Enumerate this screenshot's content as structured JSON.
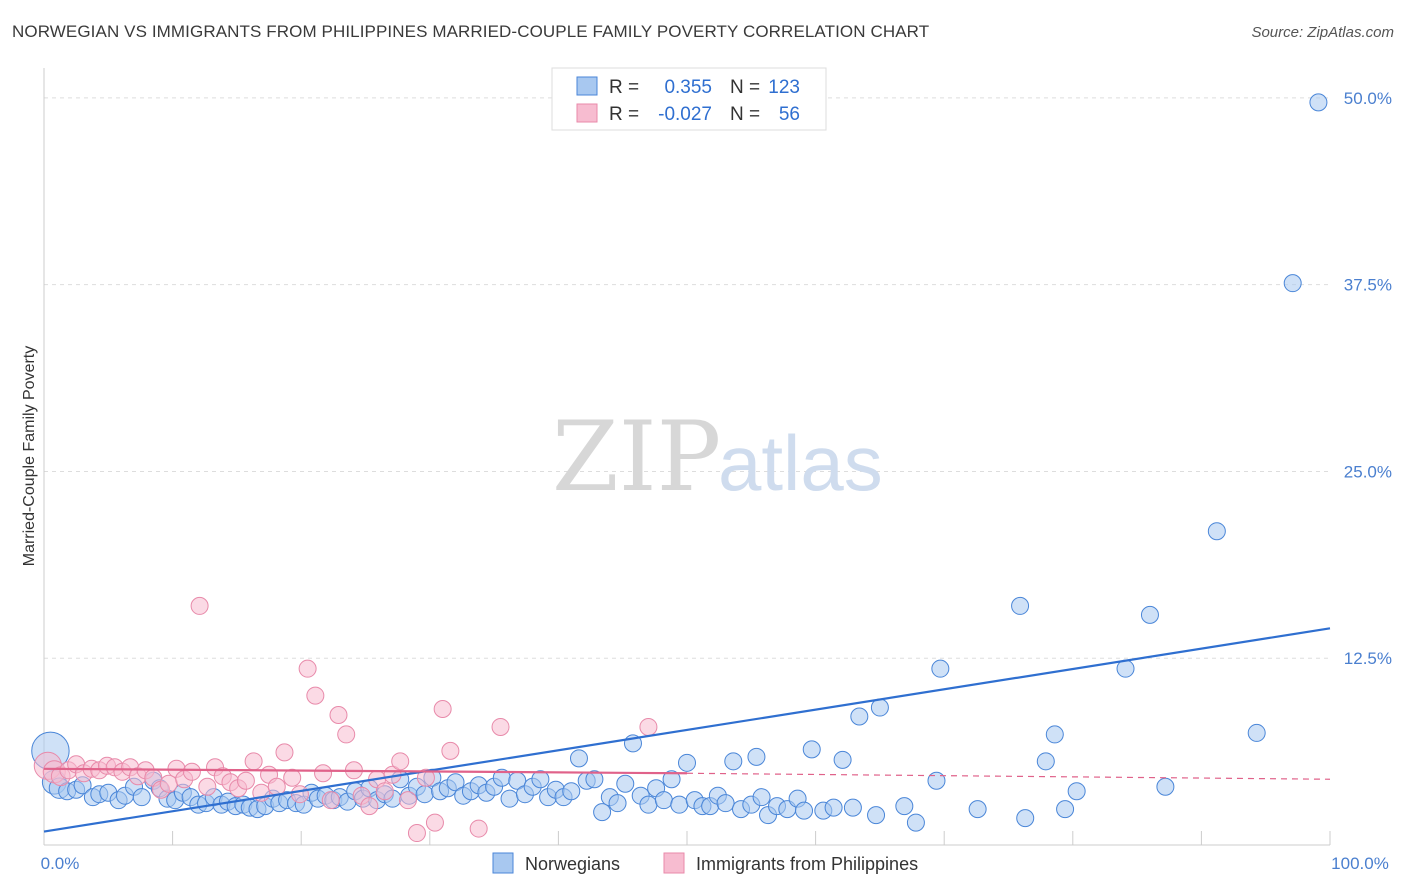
{
  "header": {
    "title": "NORWEGIAN VS IMMIGRANTS FROM PHILIPPINES MARRIED-COUPLE FAMILY POVERTY CORRELATION CHART",
    "source": "Source: ZipAtlas.com"
  },
  "watermark": {
    "zip": "ZIP",
    "atlas": "atlas"
  },
  "legend": {
    "r_label": "R =",
    "n_label": "N =",
    "rows": [
      {
        "name": "Norwegians",
        "r": "0.355",
        "n": "123",
        "color": "#a8c8f0",
        "stroke": "#4a86d8"
      },
      {
        "name": "Immigrants from Philippines",
        "r": "-0.027",
        "n": "56",
        "color": "#f7bcd0",
        "stroke": "#e88aaa"
      }
    ]
  },
  "chart_data": {
    "type": "scatter",
    "title": "NORWEGIAN VS IMMIGRANTS FROM PHILIPPINES MARRIED-COUPLE FAMILY POVERTY CORRELATION CHART",
    "xlabel": "",
    "ylabel": "Married-Couple Family Poverty",
    "xlim": [
      0,
      100
    ],
    "ylim": [
      0,
      52
    ],
    "x_tick_labels": [
      "0.0%",
      "100.0%"
    ],
    "y_ticks": [
      12.5,
      25.0,
      37.5,
      50.0
    ],
    "y_tick_labels": [
      "12.5%",
      "25.0%",
      "37.5%",
      "50.0%"
    ],
    "grid": true,
    "legend_position": "top-center",
    "series": [
      {
        "name": "Norwegians",
        "color": "#a8c8f0",
        "stroke": "#4a86d8",
        "line_color": "#2f6fd0",
        "trend": {
          "x0": 0,
          "y0": 0.9,
          "x1": 100,
          "y1": 14.5,
          "dashed_from": null
        },
        "points": [
          [
            0.5,
            6.3,
            2.2
          ],
          [
            0.8,
            4.2,
            1.4
          ],
          [
            1.2,
            3.8,
            1.2
          ],
          [
            1.8,
            3.6,
            1
          ],
          [
            2.5,
            3.7,
            1
          ],
          [
            3,
            4.0,
            1
          ],
          [
            3.8,
            3.2,
            1
          ],
          [
            4.3,
            3.4,
            1
          ],
          [
            5,
            3.5,
            1
          ],
          [
            5.8,
            3.0,
            1
          ],
          [
            6.3,
            3.3,
            1
          ],
          [
            7,
            3.9,
            1
          ],
          [
            7.6,
            3.2,
            1
          ],
          [
            8.5,
            4.3,
            1
          ],
          [
            9,
            3.8,
            1
          ],
          [
            9.6,
            3.1,
            1
          ],
          [
            10.2,
            3.0,
            1
          ],
          [
            10.8,
            3.5,
            1
          ],
          [
            11.4,
            3.2,
            1
          ],
          [
            12,
            2.7,
            1
          ],
          [
            12.6,
            2.8,
            1
          ],
          [
            13.2,
            3.2,
            1
          ],
          [
            13.8,
            2.7,
            1
          ],
          [
            14.3,
            2.9,
            1
          ],
          [
            14.9,
            2.6,
            1
          ],
          [
            15.5,
            2.7,
            1
          ],
          [
            16,
            2.5,
            1
          ],
          [
            16.6,
            2.4,
            1
          ],
          [
            17.2,
            2.6,
            1
          ],
          [
            17.8,
            3.1,
            1
          ],
          [
            18.3,
            2.8,
            1
          ],
          [
            18.9,
            3.0,
            1
          ],
          [
            19.6,
            2.8,
            1
          ],
          [
            20.2,
            2.7,
            1
          ],
          [
            20.8,
            3.5,
            1
          ],
          [
            21.3,
            3.1,
            1
          ],
          [
            21.9,
            3.3,
            1
          ],
          [
            22.5,
            3.0,
            1
          ],
          [
            23,
            3.2,
            1
          ],
          [
            23.6,
            2.9,
            1
          ],
          [
            24.2,
            3.6,
            1
          ],
          [
            24.8,
            3.1,
            1
          ],
          [
            25.3,
            3.8,
            1
          ],
          [
            25.9,
            3.0,
            1
          ],
          [
            26.5,
            3.4,
            1
          ],
          [
            27.1,
            3.1,
            1
          ],
          [
            27.7,
            4.4,
            1
          ],
          [
            28.4,
            3.3,
            1
          ],
          [
            29,
            3.9,
            1
          ],
          [
            29.6,
            3.4,
            1
          ],
          [
            30.2,
            4.5,
            1
          ],
          [
            30.8,
            3.6,
            1
          ],
          [
            31.4,
            3.8,
            1
          ],
          [
            32,
            4.2,
            1
          ],
          [
            32.6,
            3.3,
            1
          ],
          [
            33.2,
            3.6,
            1
          ],
          [
            33.8,
            4.0,
            1
          ],
          [
            34.4,
            3.5,
            1
          ],
          [
            35,
            3.9,
            1
          ],
          [
            35.6,
            4.5,
            1
          ],
          [
            36.2,
            3.1,
            1
          ],
          [
            36.8,
            4.3,
            1
          ],
          [
            37.4,
            3.4,
            1
          ],
          [
            38,
            3.9,
            1
          ],
          [
            38.6,
            4.4,
            1
          ],
          [
            39.2,
            3.2,
            1
          ],
          [
            39.8,
            3.7,
            1
          ],
          [
            40.4,
            3.2,
            1
          ],
          [
            41,
            3.6,
            1
          ],
          [
            41.6,
            5.8,
            1
          ],
          [
            42.2,
            4.3,
            1
          ],
          [
            42.8,
            4.4,
            1
          ],
          [
            43.4,
            2.2,
            1
          ],
          [
            44,
            3.2,
            1
          ],
          [
            44.6,
            2.8,
            1
          ],
          [
            45.2,
            4.1,
            1
          ],
          [
            45.8,
            6.8,
            1
          ],
          [
            46.4,
            3.3,
            1
          ],
          [
            47,
            2.7,
            1
          ],
          [
            47.6,
            3.8,
            1
          ],
          [
            48.2,
            3.0,
            1
          ],
          [
            48.8,
            4.4,
            1
          ],
          [
            49.4,
            2.7,
            1
          ],
          [
            50,
            5.5,
            1
          ],
          [
            50.6,
            3.0,
            1
          ],
          [
            51.2,
            2.6,
            1
          ],
          [
            51.8,
            2.6,
            1
          ],
          [
            52.4,
            3.3,
            1
          ],
          [
            53,
            2.8,
            1
          ],
          [
            53.6,
            5.6,
            1
          ],
          [
            54.2,
            2.4,
            1
          ],
          [
            55,
            2.7,
            1
          ],
          [
            55.8,
            3.2,
            1
          ],
          [
            56.3,
            2.0,
            1
          ],
          [
            57,
            2.6,
            1
          ],
          [
            57.8,
            2.4,
            1
          ],
          [
            58.6,
            3.1,
            1
          ],
          [
            59.1,
            2.3,
            1
          ],
          [
            59.7,
            6.4,
            1
          ],
          [
            60.6,
            2.3,
            1
          ],
          [
            61.4,
            2.5,
            1
          ],
          [
            62.1,
            5.7,
            1
          ],
          [
            62.9,
            2.5,
            1
          ],
          [
            63.4,
            8.6,
            1
          ],
          [
            64.7,
            2.0,
            1
          ],
          [
            65,
            9.2,
            1
          ],
          [
            66.9,
            2.6,
            1
          ],
          [
            67.8,
            1.5,
            1
          ],
          [
            69.4,
            4.3,
            1
          ],
          [
            69.7,
            11.8,
            1
          ],
          [
            72.6,
            2.4,
            1
          ],
          [
            75.9,
            16.0,
            1
          ],
          [
            76.3,
            1.8,
            1
          ],
          [
            77.9,
            5.6,
            1
          ],
          [
            78.6,
            7.4,
            1
          ],
          [
            79.4,
            2.4,
            1
          ],
          [
            80.3,
            3.6,
            1
          ],
          [
            84.1,
            11.8,
            1
          ],
          [
            91.2,
            21.0,
            1
          ],
          [
            87.2,
            3.9,
            1
          ],
          [
            86,
            15.4,
            1
          ],
          [
            94.3,
            7.5,
            1
          ],
          [
            97.1,
            37.6,
            1
          ],
          [
            99.1,
            49.7,
            1
          ],
          [
            55.4,
            5.9,
            1
          ]
        ]
      },
      {
        "name": "Immigrants from Philippines",
        "color": "#f7bcd0",
        "stroke": "#e88aaa",
        "line_color": "#e0628a",
        "trend": {
          "x0": 0,
          "y0": 5.1,
          "x1": 50,
          "y1": 4.8,
          "dashed_from": 50,
          "x2": 100,
          "y2": 4.4
        },
        "points": [
          [
            0.3,
            5.3,
            1.6
          ],
          [
            0.8,
            4.9,
            1.3
          ],
          [
            1.3,
            4.6,
            1.1
          ],
          [
            1.9,
            5.0,
            1
          ],
          [
            2.5,
            5.4,
            1
          ],
          [
            3.1,
            4.8,
            1
          ],
          [
            3.7,
            5.1,
            1
          ],
          [
            4.3,
            5.0,
            1
          ],
          [
            4.9,
            5.3,
            1
          ],
          [
            5.5,
            5.2,
            1
          ],
          [
            6.1,
            4.9,
            1
          ],
          [
            6.7,
            5.2,
            1
          ],
          [
            7.3,
            4.6,
            1
          ],
          [
            7.9,
            5.0,
            1
          ],
          [
            8.5,
            4.5,
            1
          ],
          [
            9.1,
            3.7,
            1
          ],
          [
            9.7,
            4.1,
            1
          ],
          [
            10.3,
            5.1,
            1
          ],
          [
            10.9,
            4.4,
            1
          ],
          [
            11.5,
            4.9,
            1
          ],
          [
            12.1,
            16.0,
            1
          ],
          [
            12.7,
            3.9,
            1
          ],
          [
            13.3,
            5.2,
            1
          ],
          [
            13.9,
            4.6,
            1
          ],
          [
            14.5,
            4.2,
            1
          ],
          [
            15.1,
            3.8,
            1
          ],
          [
            15.7,
            4.3,
            1
          ],
          [
            16.3,
            5.6,
            1
          ],
          [
            16.9,
            3.5,
            1
          ],
          [
            17.5,
            4.7,
            1
          ],
          [
            18.1,
            3.9,
            1
          ],
          [
            18.7,
            6.2,
            1
          ],
          [
            19.3,
            4.5,
            1
          ],
          [
            19.9,
            3.4,
            1
          ],
          [
            20.5,
            11.8,
            1
          ],
          [
            21.1,
            10.0,
            1
          ],
          [
            21.7,
            4.8,
            1
          ],
          [
            22.3,
            3.0,
            1
          ],
          [
            22.9,
            8.7,
            1
          ],
          [
            23.5,
            7.4,
            1
          ],
          [
            24.1,
            5.0,
            1
          ],
          [
            24.7,
            3.3,
            1
          ],
          [
            25.3,
            2.6,
            1
          ],
          [
            25.9,
            4.4,
            1
          ],
          [
            26.5,
            3.6,
            1
          ],
          [
            27.1,
            4.7,
            1
          ],
          [
            27.7,
            5.6,
            1
          ],
          [
            28.3,
            3.0,
            1
          ],
          [
            29,
            0.8,
            1
          ],
          [
            29.7,
            4.5,
            1
          ],
          [
            30.4,
            1.5,
            1
          ],
          [
            31,
            9.1,
            1
          ],
          [
            31.6,
            6.3,
            1
          ],
          [
            33.8,
            1.1,
            1
          ],
          [
            35.5,
            7.9,
            1
          ],
          [
            47,
            7.9,
            1
          ]
        ]
      }
    ]
  }
}
